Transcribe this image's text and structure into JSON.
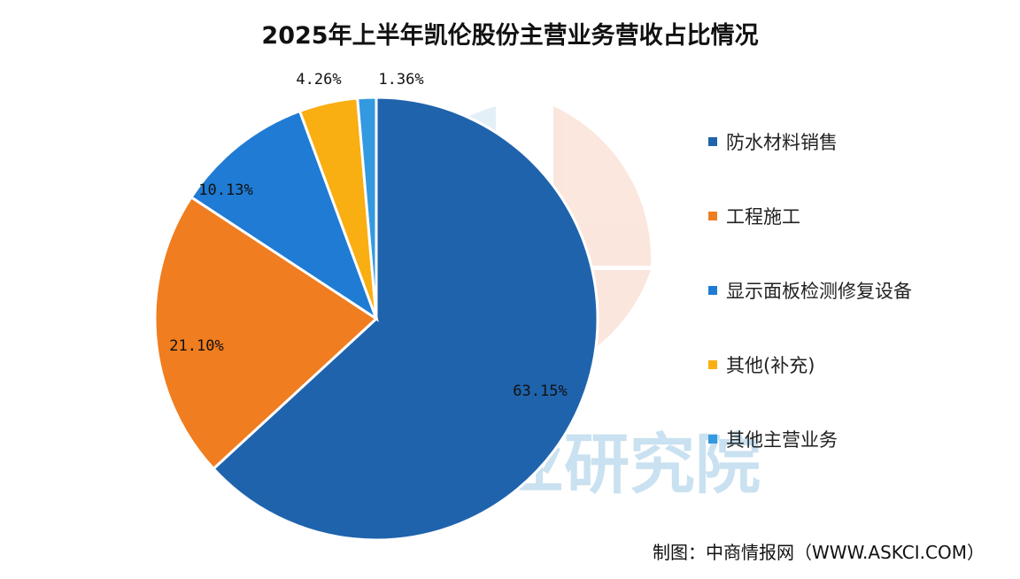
{
  "title": "2025年上半年凯伦股份主营业务营收占比情况",
  "source": "制图：中商情报网（WWW.ASKCI.COM）",
  "watermark": {
    "text": "中商产业研究院",
    "colors": [
      "#9ec9e4",
      "#f6c6b0",
      "#d7e9f5"
    ]
  },
  "chart_data": {
    "type": "pie",
    "title": "2025年上半年凯伦股份主营业务营收占比情况",
    "start_angle_deg": 0,
    "direction": "clockwise",
    "legend_position": "right",
    "slices": [
      {
        "label": "防水材料销售",
        "value": 63.15,
        "value_label": "63.15%",
        "color": "#1f63ac"
      },
      {
        "label": "工程施工",
        "value": 21.1,
        "value_label": "21.10%",
        "color": "#f07d1f"
      },
      {
        "label": "显示面板检测修复设备",
        "value": 10.13,
        "value_label": "10.13%",
        "color": "#1f7bd3"
      },
      {
        "label": "其他(补充)",
        "value": 4.26,
        "value_label": "4.26%",
        "color": "#f9ae12"
      },
      {
        "label": "其他主营业务",
        "value": 1.36,
        "value_label": "1.36%",
        "color": "#3399e0"
      }
    ]
  }
}
